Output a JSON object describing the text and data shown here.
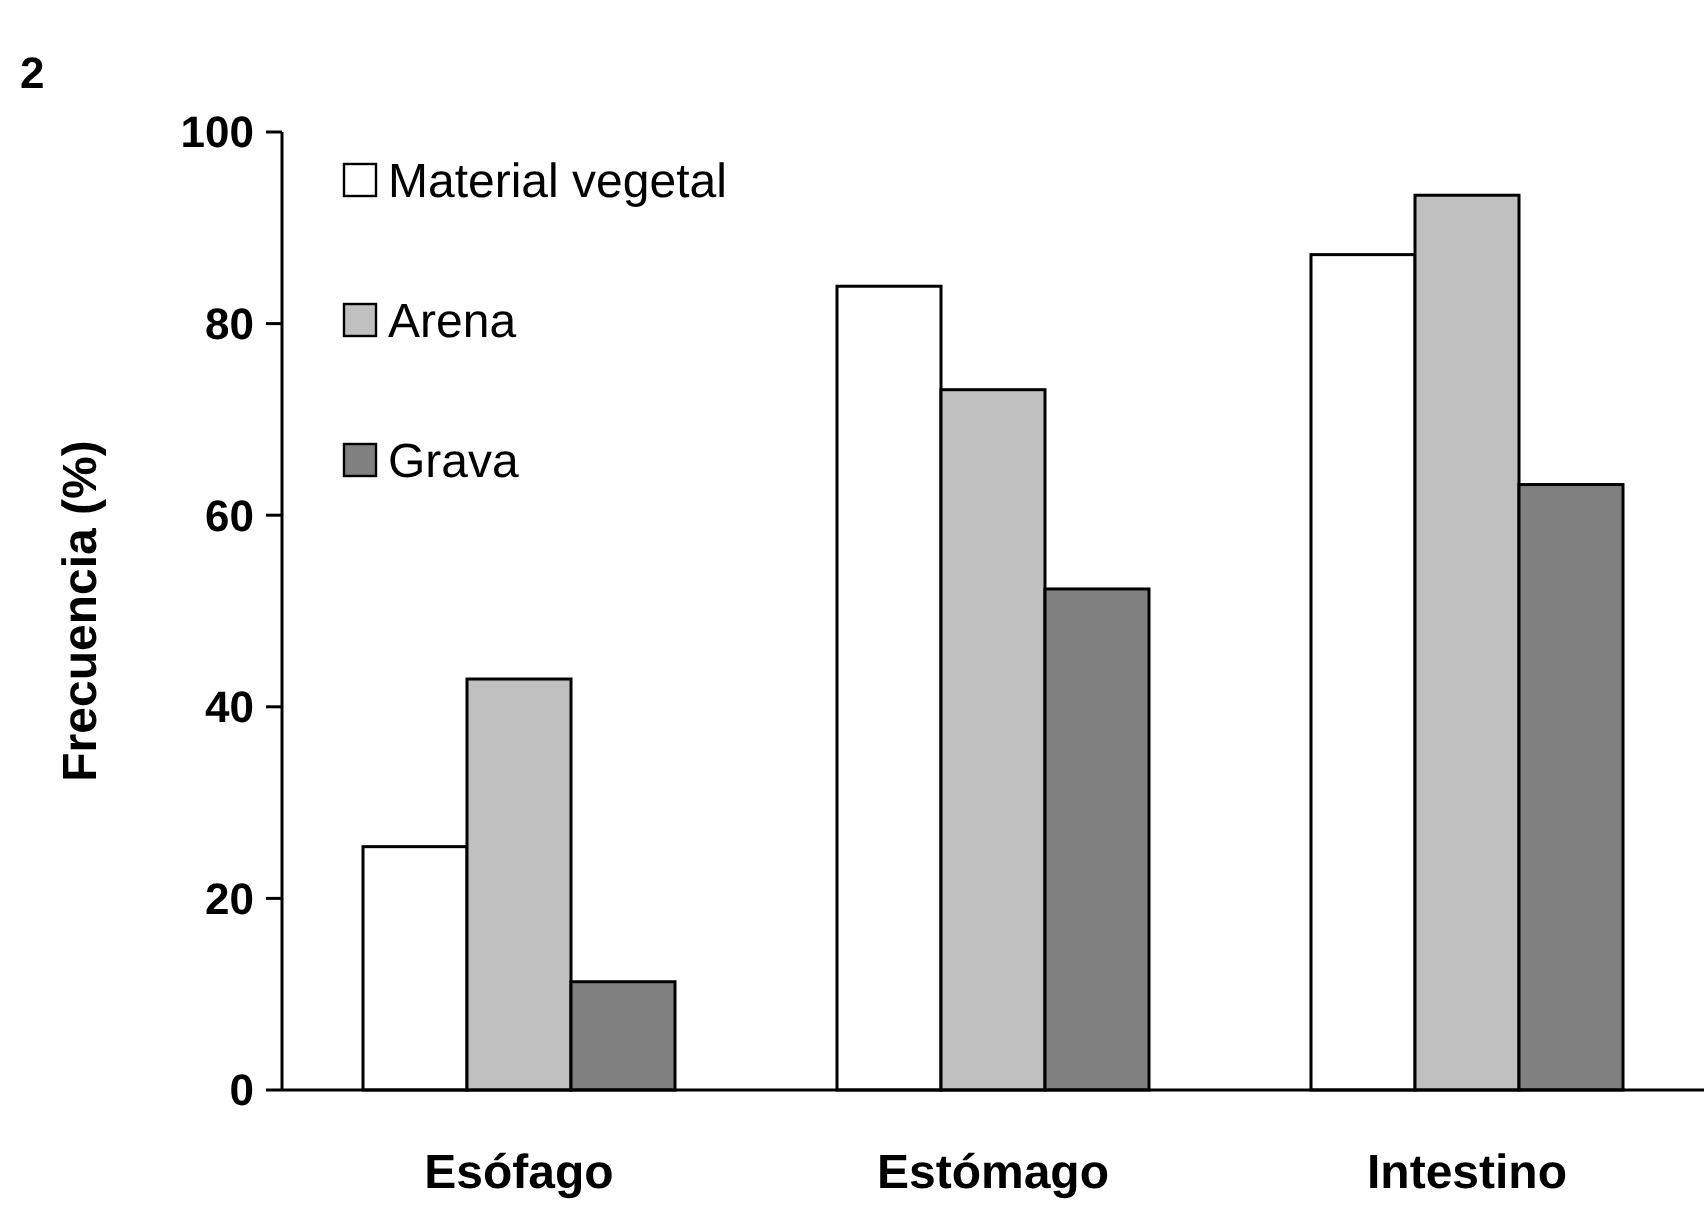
{
  "chart_data": {
    "type": "bar",
    "ylabel": "Frecuencia (%)",
    "annotations": [
      "2"
    ],
    "categories": [
      "Esófago",
      "Estómago",
      "Intestino"
    ],
    "series": [
      {
        "name": "Material vegetal",
        "color": "#ffffff",
        "values": [
          25.4,
          83.9,
          87.2
        ]
      },
      {
        "name": "Arena",
        "color": "#c0c0c0",
        "values": [
          42.9,
          73.1,
          93.4
        ]
      },
      {
        "name": "Grava",
        "color": "#808080",
        "values": [
          11.3,
          52.3,
          63.2
        ]
      }
    ],
    "ylim": [
      0,
      100
    ],
    "yticks": [
      0,
      20,
      40,
      60,
      80,
      100
    ],
    "grid": false,
    "legend": "top left"
  }
}
